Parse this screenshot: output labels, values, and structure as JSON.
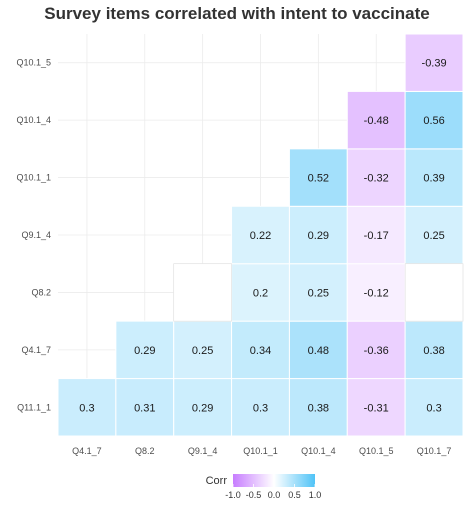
{
  "chart_data": {
    "type": "heatmap",
    "title": "Survey items correlated with intent to vaccinate",
    "x_categories": [
      "Q4.1_7",
      "Q8.2",
      "Q9.1_4",
      "Q10.1_1",
      "Q10.1_4",
      "Q10.1_5",
      "Q10.1_7"
    ],
    "y_categories": [
      "Q11.1_1",
      "Q4.1_7",
      "Q8.2",
      "Q9.1_4",
      "Q10.1_1",
      "Q10.1_4",
      "Q10.1_5"
    ],
    "cells": [
      {
        "x": "Q4.1_7",
        "y": "Q11.1_1",
        "value": 0.3,
        "label": "0.3"
      },
      {
        "x": "Q8.2",
        "y": "Q11.1_1",
        "value": 0.31,
        "label": "0.31"
      },
      {
        "x": "Q9.1_4",
        "y": "Q11.1_1",
        "value": 0.29,
        "label": "0.29"
      },
      {
        "x": "Q10.1_1",
        "y": "Q11.1_1",
        "value": 0.3,
        "label": "0.3"
      },
      {
        "x": "Q10.1_4",
        "y": "Q11.1_1",
        "value": 0.38,
        "label": "0.38"
      },
      {
        "x": "Q10.1_5",
        "y": "Q11.1_1",
        "value": -0.31,
        "label": "-0.31"
      },
      {
        "x": "Q10.1_7",
        "y": "Q11.1_1",
        "value": 0.3,
        "label": "0.3"
      },
      {
        "x": "Q8.2",
        "y": "Q4.1_7",
        "value": 0.29,
        "label": "0.29"
      },
      {
        "x": "Q9.1_4",
        "y": "Q4.1_7",
        "value": 0.25,
        "label": "0.25"
      },
      {
        "x": "Q10.1_1",
        "y": "Q4.1_7",
        "value": 0.34,
        "label": "0.34"
      },
      {
        "x": "Q10.1_4",
        "y": "Q4.1_7",
        "value": 0.48,
        "label": "0.48"
      },
      {
        "x": "Q10.1_5",
        "y": "Q4.1_7",
        "value": -0.36,
        "label": "-0.36"
      },
      {
        "x": "Q10.1_7",
        "y": "Q4.1_7",
        "value": 0.38,
        "label": "0.38"
      },
      {
        "x": "Q9.1_4",
        "y": "Q8.2",
        "value": 0.0,
        "label": ""
      },
      {
        "x": "Q10.1_1",
        "y": "Q8.2",
        "value": 0.2,
        "label": "0.2"
      },
      {
        "x": "Q10.1_4",
        "y": "Q8.2",
        "value": 0.25,
        "label": "0.25"
      },
      {
        "x": "Q10.1_5",
        "y": "Q8.2",
        "value": -0.12,
        "label": "-0.12"
      },
      {
        "x": "Q10.1_7",
        "y": "Q8.2",
        "value": 0.0,
        "label": ""
      },
      {
        "x": "Q10.1_1",
        "y": "Q9.1_4",
        "value": 0.22,
        "label": "0.22"
      },
      {
        "x": "Q10.1_4",
        "y": "Q9.1_4",
        "value": 0.29,
        "label": "0.29"
      },
      {
        "x": "Q10.1_5",
        "y": "Q9.1_4",
        "value": -0.17,
        "label": "-0.17"
      },
      {
        "x": "Q10.1_7",
        "y": "Q9.1_4",
        "value": 0.25,
        "label": "0.25"
      },
      {
        "x": "Q10.1_4",
        "y": "Q10.1_1",
        "value": 0.52,
        "label": "0.52"
      },
      {
        "x": "Q10.1_5",
        "y": "Q10.1_1",
        "value": -0.32,
        "label": "-0.32"
      },
      {
        "x": "Q10.1_7",
        "y": "Q10.1_1",
        "value": 0.39,
        "label": "0.39"
      },
      {
        "x": "Q10.1_5",
        "y": "Q10.1_4",
        "value": -0.48,
        "label": "-0.48"
      },
      {
        "x": "Q10.1_7",
        "y": "Q10.1_4",
        "value": 0.56,
        "label": "0.56"
      },
      {
        "x": "Q10.1_7",
        "y": "Q10.1_5",
        "value": -0.39,
        "label": "-0.39"
      }
    ],
    "color_scale": {
      "low": "#c77dff",
      "mid": "#ffffff",
      "high": "#4fc3f7",
      "domain": [
        -1,
        1
      ]
    },
    "legend": {
      "title": "Corr",
      "placement": "bottom",
      "ticks": [
        "-1.0",
        "-0.5",
        "0.0",
        "0.5",
        "1.0"
      ],
      "tick_values": [
        -1,
        -0.5,
        0,
        0.5,
        1
      ]
    },
    "grid": true
  }
}
